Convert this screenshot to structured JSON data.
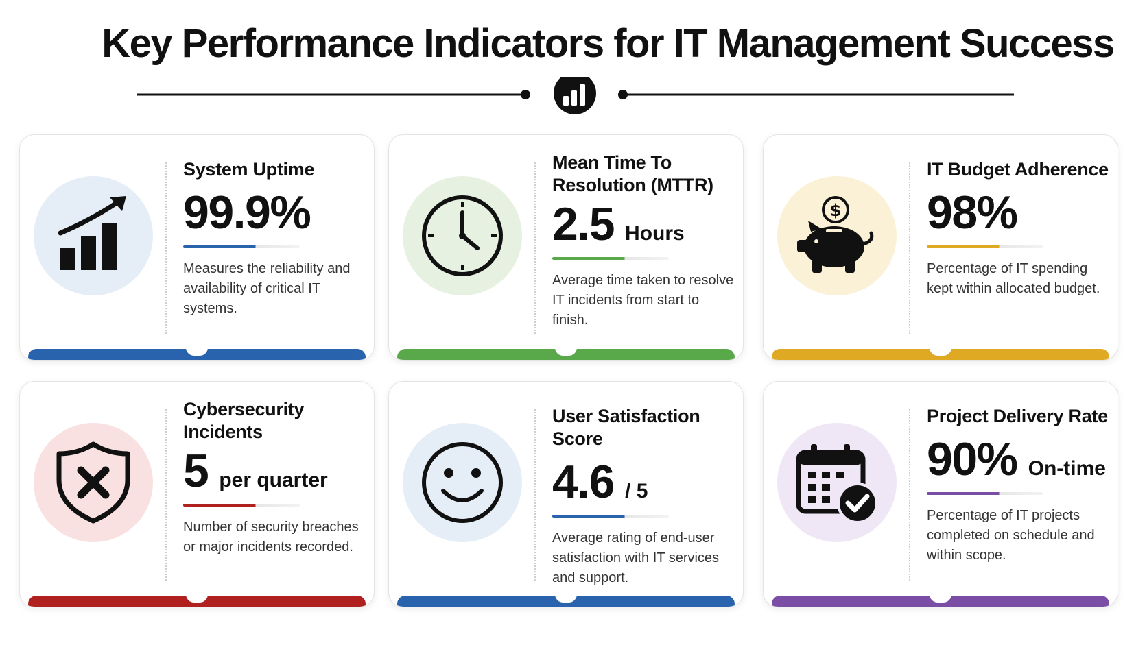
{
  "header": {
    "title": "Key Performance Indicators for IT Management Success",
    "icon": "bar-chart-icon"
  },
  "colors": {
    "blue": "#2a63ad",
    "green": "#59a84a",
    "gold": "#e0a924",
    "red": "#b0201f",
    "purple": "#7b4ea5"
  },
  "cards": [
    {
      "title": "System Uptime",
      "value": "99.9%",
      "unit": "",
      "description": "Measures the reliability and availability of critical IT systems.",
      "icon": "growth-chart-icon",
      "accent": "#2a63ad",
      "circle_bg": "#e5edf7"
    },
    {
      "title": "Mean Time To Resolution (MTTR)",
      "value": "2.5",
      "unit": "Hours",
      "description": "Average time taken to resolve IT incidents from start to finish.",
      "icon": "clock-icon",
      "accent": "#59a84a",
      "circle_bg": "#e6f1e1"
    },
    {
      "title": "IT Budget Adherence",
      "value": "98%",
      "unit": "",
      "description": "Percentage of IT spending kept within allocated budget.",
      "icon": "piggy-bank-icon",
      "accent": "#e0a924",
      "circle_bg": "#fbf1d6"
    },
    {
      "title": "Cybersecurity Incidents",
      "value": "5",
      "unit": "per quarter",
      "description": "Number of security breaches or major incidents recorded.",
      "icon": "shield-x-icon",
      "accent": "#b0201f",
      "circle_bg": "#f8e1e0"
    },
    {
      "title": "User Satisfaction Score",
      "value": "4.6",
      "unit": "/ 5",
      "description": "Average rating of end-user satisfaction with IT services and support.",
      "icon": "smiley-icon",
      "accent": "#2a63ad",
      "circle_bg": "#e5edf7"
    },
    {
      "title": "Project Delivery Rate",
      "value": "90%",
      "unit": "On-time",
      "description": "Percentage of IT projects completed on schedule and within scope.",
      "icon": "calendar-check-icon",
      "accent": "#7b4ea5",
      "circle_bg": "#efe7f5"
    }
  ]
}
